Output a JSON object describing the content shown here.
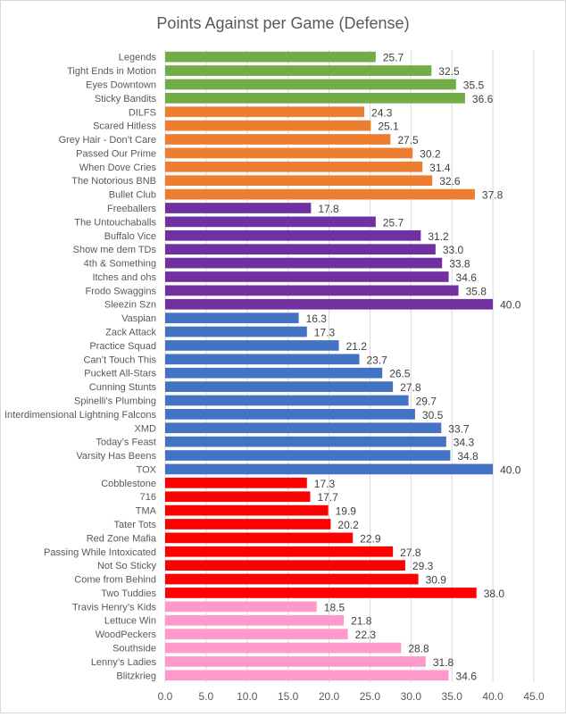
{
  "chart_data": {
    "type": "bar",
    "orientation": "horizontal",
    "title": "Points Against per Game (Defense)",
    "xlabel": "",
    "ylabel": "",
    "xlim": [
      0,
      45
    ],
    "x_ticks": [
      "0.0",
      "5.0",
      "10.0",
      "15.0",
      "20.0",
      "25.0",
      "30.0",
      "35.0",
      "40.0",
      "45.0"
    ],
    "grid": true,
    "legend": "none",
    "groups": [
      {
        "name": "green",
        "color": "#70ad47"
      },
      {
        "name": "orange",
        "color": "#ed7d31"
      },
      {
        "name": "purple",
        "color": "#7030a0"
      },
      {
        "name": "blue",
        "color": "#4472c4"
      },
      {
        "name": "red",
        "color": "#ff0000"
      },
      {
        "name": "pink",
        "color": "#ff99cc"
      }
    ],
    "bars": [
      {
        "category": "Legends",
        "value": 25.7,
        "label": "25.7",
        "group": 0
      },
      {
        "category": "Tight Ends in Motion",
        "value": 32.5,
        "label": "32.5",
        "group": 0
      },
      {
        "category": "Eyes Downtown",
        "value": 35.5,
        "label": "35.5",
        "group": 0
      },
      {
        "category": "Sticky Bandits",
        "value": 36.6,
        "label": "36.6",
        "group": 0
      },
      {
        "category": "DILFS",
        "value": 24.3,
        "label": "24.3",
        "group": 1
      },
      {
        "category": "Scared Hitless",
        "value": 25.1,
        "label": "25.1",
        "group": 1
      },
      {
        "category": "Grey Hair - Don’t Care",
        "value": 27.5,
        "label": "27.5",
        "group": 1
      },
      {
        "category": "Passed Our Prime",
        "value": 30.2,
        "label": "30.2",
        "group": 1
      },
      {
        "category": "When Dove Cries",
        "value": 31.4,
        "label": "31.4",
        "group": 1
      },
      {
        "category": "The Notorious BNB",
        "value": 32.6,
        "label": "32.6",
        "group": 1
      },
      {
        "category": "Bullet Club",
        "value": 37.8,
        "label": "37.8",
        "group": 1
      },
      {
        "category": "Freeballers",
        "value": 17.8,
        "label": "17.8",
        "group": 2
      },
      {
        "category": "The Untouchaballs",
        "value": 25.7,
        "label": "25.7",
        "group": 2
      },
      {
        "category": "Buffalo Vice",
        "value": 31.2,
        "label": "31.2",
        "group": 2
      },
      {
        "category": "Show me dem TDs",
        "value": 33.0,
        "label": "33.0",
        "group": 2
      },
      {
        "category": "4th & Something",
        "value": 33.8,
        "label": "33.8",
        "group": 2
      },
      {
        "category": "Itches and ohs",
        "value": 34.6,
        "label": "34.6",
        "group": 2
      },
      {
        "category": "Frodo Swaggins",
        "value": 35.8,
        "label": "35.8",
        "group": 2
      },
      {
        "category": "Sleezin Szn",
        "value": 40.0,
        "label": "40.0",
        "group": 2
      },
      {
        "category": "Vaspian",
        "value": 16.3,
        "label": "16.3",
        "group": 3
      },
      {
        "category": "Zack Attack",
        "value": 17.3,
        "label": "17.3",
        "group": 3
      },
      {
        "category": "Practice Squad",
        "value": 21.2,
        "label": "21.2",
        "group": 3
      },
      {
        "category": "Can’t Touch This",
        "value": 23.7,
        "label": "23.7",
        "group": 3
      },
      {
        "category": "Puckett All-Stars",
        "value": 26.5,
        "label": "26.5",
        "group": 3
      },
      {
        "category": "Cunning Stunts",
        "value": 27.8,
        "label": "27.8",
        "group": 3
      },
      {
        "category": "Spinelli's Plumbing",
        "value": 29.7,
        "label": "29.7",
        "group": 3
      },
      {
        "category": "Interdimensional Lightning Falcons",
        "value": 30.5,
        "label": "30.5",
        "group": 3
      },
      {
        "category": "XMD",
        "value": 33.7,
        "label": "33.7",
        "group": 3
      },
      {
        "category": "Today’s Feast",
        "value": 34.3,
        "label": "34.3",
        "group": 3
      },
      {
        "category": "Varsity Has Beens",
        "value": 34.8,
        "label": "34.8",
        "group": 3
      },
      {
        "category": "TOX",
        "value": 40.0,
        "label": "40.0",
        "group": 3
      },
      {
        "category": "Cobblestone",
        "value": 17.3,
        "label": "17.3",
        "group": 4
      },
      {
        "category": "716",
        "value": 17.7,
        "label": "17.7",
        "group": 4
      },
      {
        "category": "TMA",
        "value": 19.9,
        "label": "19.9",
        "group": 4
      },
      {
        "category": "Tater Tots",
        "value": 20.2,
        "label": "20.2",
        "group": 4
      },
      {
        "category": "Red Zone Mafia",
        "value": 22.9,
        "label": "22.9",
        "group": 4
      },
      {
        "category": "Passing While Intoxicated",
        "value": 27.8,
        "label": "27.8",
        "group": 4
      },
      {
        "category": "Not So Sticky",
        "value": 29.3,
        "label": "29.3",
        "group": 4
      },
      {
        "category": "Come from Behind",
        "value": 30.9,
        "label": "30.9",
        "group": 4
      },
      {
        "category": "Two Tuddies",
        "value": 38.0,
        "label": "38.0",
        "group": 4
      },
      {
        "category": "Travis Henry’s Kids",
        "value": 18.5,
        "label": "18.5",
        "group": 5
      },
      {
        "category": "Lettuce Win",
        "value": 21.8,
        "label": "21.8",
        "group": 5
      },
      {
        "category": "WoodPeckers",
        "value": 22.3,
        "label": "22.3",
        "group": 5
      },
      {
        "category": "Southside",
        "value": 28.8,
        "label": "28.8",
        "group": 5
      },
      {
        "category": "Lenny’s Ladies",
        "value": 31.8,
        "label": "31.8",
        "group": 5
      },
      {
        "category": "Blitzkrieg",
        "value": 34.6,
        "label": "34.6",
        "group": 5
      }
    ]
  }
}
